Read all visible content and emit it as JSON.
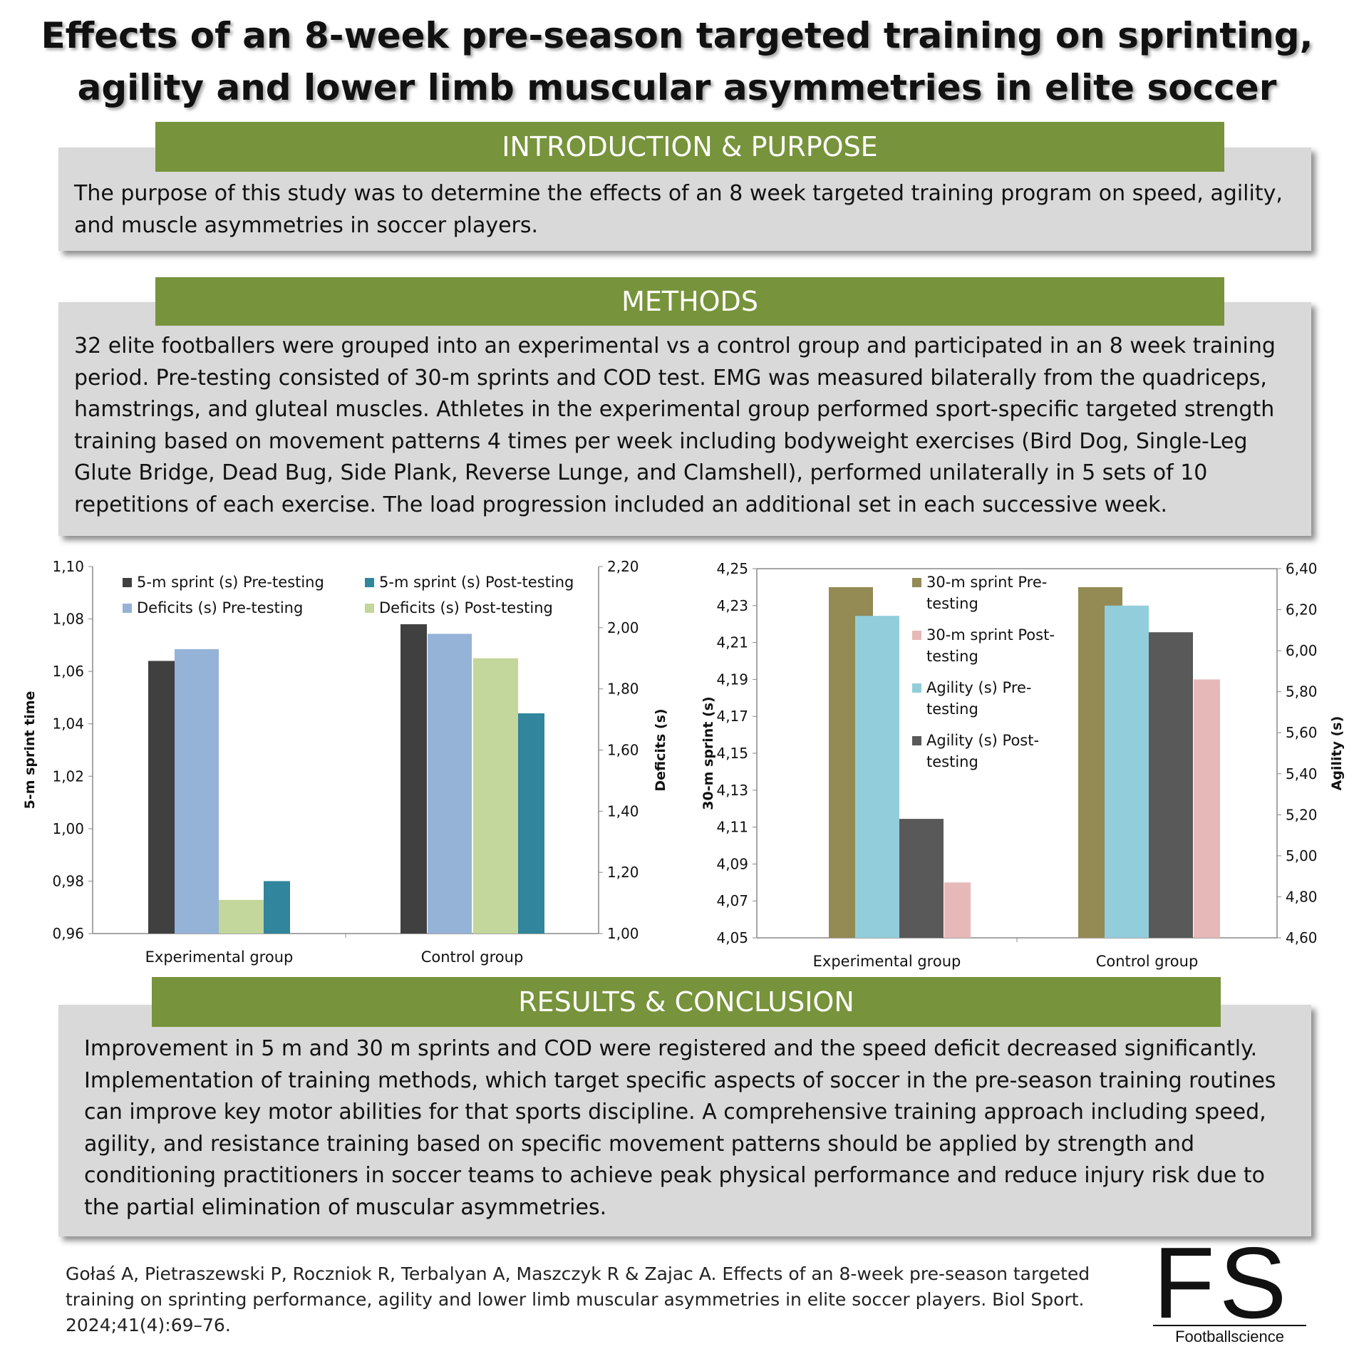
{
  "title": "Effects of an 8-week pre-season targeted training on sprinting, agility and lower limb muscular asymmetries in elite soccer players",
  "sections": {
    "intro": {
      "heading": "INTRODUCTION & PURPOSE",
      "text": "The purpose of this study was to determine the effects of an 8 week targeted training program on speed, agility, and muscle asymmetries in soccer players."
    },
    "methods": {
      "heading": "METHODS",
      "text": "32 elite footballers were grouped into an experimental vs a control group and participated in an 8 week training period. Pre-testing consisted of 30-m sprints and COD test. EMG was measured bilaterally from the quadriceps, hamstrings, and gluteal muscles. Athletes in the experimental group performed sport-specific targeted strength training based on movement patterns 4 times per week including bodyweight exercises (Bird Dog, Single-Leg Glute Bridge, Dead Bug, Side Plank, Reverse Lunge, and Clamshell), performed unilaterally in 5 sets of 10 repetitions of each exercise. The load progression included an additional set in each successive week."
    },
    "results": {
      "heading": "RESULTS & CONCLUSION",
      "text": "Improvement in 5 m and 30 m sprints and COD were registered and the speed deficit decreased significantly. Implementation of training methods, which target specific aspects of soccer in the pre-season training routines can improve key motor abilities for that sports discipline. A comprehensive training approach including speed, agility, and resistance training based on specific movement patterns should be applied by strength and conditioning practitioners in soccer teams to achieve peak physical performance and reduce injury risk due to the partial elimination of muscular asymmetries."
    }
  },
  "citation": "Gołaś A, Pietraszewski P, Roczniok R, Terbalyan A, Maszczyk R & Zajac A. Effects of an 8-week pre-season targeted training on sprinting performance, agility and lower limb muscular asymmetries in elite soccer players. Biol Sport. 2024;41(4):69–76.",
  "logo": {
    "mark": "FS",
    "sub": "Footballscience"
  },
  "chart_data": [
    {
      "type": "bar",
      "categories": [
        "Experimental group",
        "Control group"
      ],
      "ylabel": "5-m sprint time",
      "ylabel2": "Deficits (s)",
      "ylim": [
        0.96,
        1.1
      ],
      "ylim2": [
        1.0,
        2.2
      ],
      "yticks": [
        "0,96",
        "0,98",
        "1,00",
        "1,02",
        "1,04",
        "1,06",
        "1,08",
        "1,10"
      ],
      "yticks2": [
        "1,00",
        "1,20",
        "1,40",
        "1,60",
        "1,80",
        "2,00",
        "2,20"
      ],
      "legend_position": "top",
      "series": [
        {
          "name": "5-m sprint (s) Pre-testing",
          "axis": "left",
          "color": "#404040",
          "values": [
            1.064,
            1.078
          ]
        },
        {
          "name": "Deficits (s) Pre-testing",
          "axis": "right",
          "color": "#95b3d7",
          "values": [
            1.93,
            1.98
          ]
        },
        {
          "name": "Deficits (s) Post-testing",
          "axis": "right",
          "color": "#c3d69b",
          "values": [
            1.11,
            1.9
          ]
        },
        {
          "name": "5-m sprint (s) Post-testing",
          "axis": "left",
          "color": "#31859c",
          "values": [
            0.98,
            1.044
          ]
        }
      ],
      "legend_order": [
        0,
        3,
        1,
        2
      ]
    },
    {
      "type": "bar",
      "categories": [
        "Experimental group",
        "Control group"
      ],
      "ylabel": "30-m sprint  (s)",
      "ylabel2": "Agility (s)",
      "ylim": [
        4.05,
        4.25
      ],
      "ylim2": [
        4.6,
        6.4
      ],
      "yticks": [
        "4,05",
        "4,07",
        "4,09",
        "4,11",
        "4,13",
        "4,15",
        "4,17",
        "4,19",
        "4,21",
        "4,23",
        "4,25"
      ],
      "yticks2": [
        "4,60",
        "4,80",
        "5,00",
        "5,20",
        "5,40",
        "5,60",
        "5,80",
        "6,00",
        "6,20",
        "6,40"
      ],
      "legend_position": "top-right",
      "series": [
        {
          "name": "30-m sprint Pre-testing",
          "legend_lines": [
            "30-m sprint Pre-",
            "testing"
          ],
          "axis": "left",
          "color": "#948a54",
          "values": [
            4.24,
            4.24
          ]
        },
        {
          "name": "Agility (s) Pre-testing",
          "legend_lines": [
            "Agility (s) Pre-",
            "testing"
          ],
          "axis": "right",
          "color": "#92cddc",
          "values": [
            6.17,
            6.22
          ]
        },
        {
          "name": "Agility (s) Post-testing",
          "legend_lines": [
            "Agility (s) Post-",
            "testing"
          ],
          "axis": "right",
          "color": "#595959",
          "values": [
            5.18,
            6.09
          ]
        },
        {
          "name": "30-m sprint Post-testing",
          "legend_lines": [
            "30-m sprint Post-",
            "testing"
          ],
          "axis": "left",
          "color": "#e6b9b8",
          "values": [
            4.08,
            4.19
          ]
        }
      ],
      "legend_order": [
        0,
        3,
        1,
        2
      ]
    }
  ]
}
